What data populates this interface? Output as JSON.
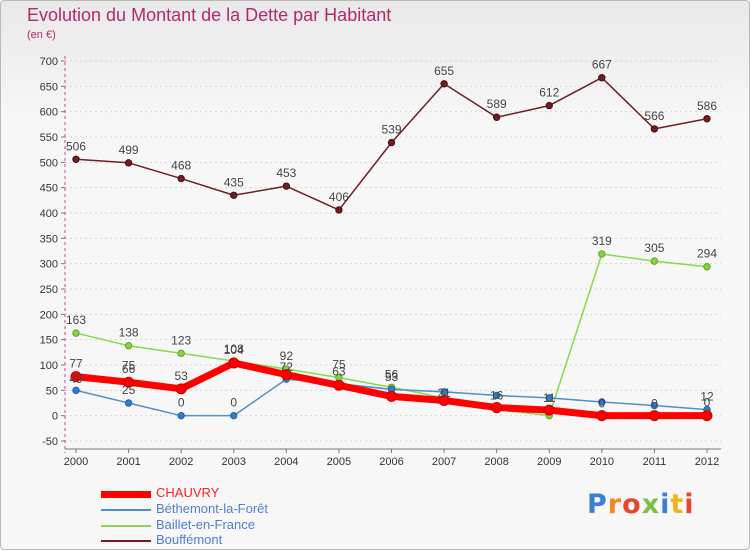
{
  "chart_data": {
    "type": "line",
    "title": "Evolution du Montant de la Dette par Habitant",
    "unit_label": "(en €)",
    "categories": [
      "2000",
      "2001",
      "2002",
      "2003",
      "2004",
      "2005",
      "2006",
      "2007",
      "2008",
      "2009",
      "2010",
      "2011",
      "2012"
    ],
    "ylim": [
      -50,
      700
    ],
    "yticks": [
      -50,
      0,
      50,
      100,
      150,
      200,
      250,
      300,
      350,
      400,
      450,
      500,
      550,
      600,
      650,
      700
    ],
    "grid": true,
    "legend_position": "bottom-left",
    "series": [
      {
        "name": "CHAUVRY",
        "color": "#ff0000",
        "values": [
          77,
          66,
          53,
          104,
          81,
          60,
          38,
          30,
          16,
          11,
          0,
          0,
          0
        ],
        "labels": [
          "77",
          "66",
          "53",
          "104",
          "",
          "",
          "",
          "",
          "",
          "",
          "",
          "",
          "0"
        ]
      },
      {
        "name": "Béthemont-la-Forêt",
        "color": "#4f8fc6",
        "values": [
          50,
          25,
          0,
          0,
          72,
          63,
          52,
          47,
          40,
          35,
          27,
          20,
          12
        ],
        "labels": [
          "",
          "25",
          "0",
          "0",
          "",
          "",
          "",
          "",
          "",
          "",
          "",
          "",
          "12"
        ]
      },
      {
        "name": "Baillet-en-France",
        "color": "#87d94d",
        "values": [
          163,
          138,
          123,
          108,
          92,
          75,
          56,
          35,
          12,
          0,
          319,
          305,
          294
        ],
        "labels": [
          "163",
          "138",
          "123",
          "",
          "92",
          "75",
          "56",
          "",
          "",
          "",
          "319",
          "305",
          "294"
        ]
      },
      {
        "name": "Bouffémont",
        "color": "#6e1e23",
        "values": [
          506,
          499,
          468,
          435,
          453,
          406,
          539,
          655,
          589,
          612,
          667,
          566,
          586
        ],
        "labels": [
          "506",
          "499",
          "468",
          "435",
          "453",
          "406",
          "539",
          "655",
          "589",
          "612",
          "667",
          "566",
          "586"
        ]
      }
    ],
    "extra_point_labels": [
      {
        "x": "2000",
        "text": "49"
      },
      {
        "x": "2001",
        "text": "75"
      },
      {
        "x": "2003",
        "text": "108"
      },
      {
        "x": "2004",
        "text": "72"
      },
      {
        "x": "2005",
        "text": "63"
      },
      {
        "x": "2006",
        "text": "53"
      },
      {
        "x": "2007",
        "text": "21"
      },
      {
        "x": "2008",
        "text": "16"
      },
      {
        "x": "2009",
        "text": "11"
      },
      {
        "x": "2010",
        "text": "0"
      },
      {
        "x": "2011",
        "text": "0"
      }
    ]
  },
  "logo": {
    "text": "Proxiti"
  }
}
